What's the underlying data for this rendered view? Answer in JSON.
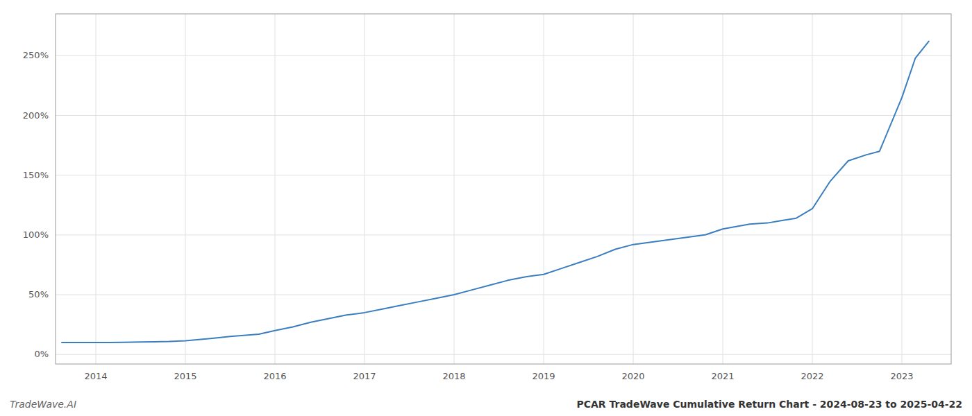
{
  "chart_data": {
    "type": "line",
    "title": "PCAR TradeWave Cumulative Return Chart - 2024-08-23 to 2025-04-22",
    "annotations": [
      "TradeWave.AI"
    ],
    "color": "#3a7ebf",
    "grid": true,
    "x": [
      2013.62,
      2014.0,
      2014.15,
      2014.3,
      2014.5,
      2014.65,
      2014.82,
      2015.0,
      2015.15,
      2015.3,
      2015.5,
      2015.65,
      2015.82,
      2016.0,
      2016.2,
      2016.4,
      2016.6,
      2016.8,
      2017.0,
      2017.2,
      2017.4,
      2017.6,
      2017.8,
      2018.0,
      2018.2,
      2018.4,
      2018.6,
      2018.8,
      2019.0,
      2019.2,
      2019.4,
      2019.6,
      2019.8,
      2020.0,
      2020.2,
      2020.4,
      2020.6,
      2020.8,
      2021.0,
      2021.15,
      2021.3,
      2021.5,
      2021.65,
      2021.82,
      2022.0,
      2022.2,
      2022.4,
      2022.6,
      2022.75,
      2023.0,
      2023.15,
      2023.3
    ],
    "values": [
      10,
      10,
      10,
      10.2,
      10.4,
      10.5,
      10.8,
      11.5,
      12.5,
      13.5,
      15,
      16,
      17,
      20,
      23,
      27,
      30,
      33,
      35,
      38,
      41,
      44,
      47,
      50,
      54,
      58,
      62,
      65,
      67,
      72,
      77,
      82,
      88,
      92,
      94,
      96,
      98,
      100,
      105,
      107,
      109,
      110,
      112,
      114,
      122,
      145,
      162,
      167,
      170,
      215,
      248,
      262
    ],
    "xlim": [
      2013.55,
      2023.55
    ],
    "xticks": [
      2014,
      2015,
      2016,
      2017,
      2018,
      2019,
      2020,
      2021,
      2022,
      2023
    ],
    "ylim": [
      -8,
      285
    ],
    "yticks": [
      {
        "value": 0,
        "label": "0%"
      },
      {
        "value": 50,
        "label": "50%"
      },
      {
        "value": 100,
        "label": "100%"
      },
      {
        "value": 150,
        "label": "150%"
      },
      {
        "value": 200,
        "label": "200%"
      },
      {
        "value": 250,
        "label": "250%"
      }
    ]
  }
}
